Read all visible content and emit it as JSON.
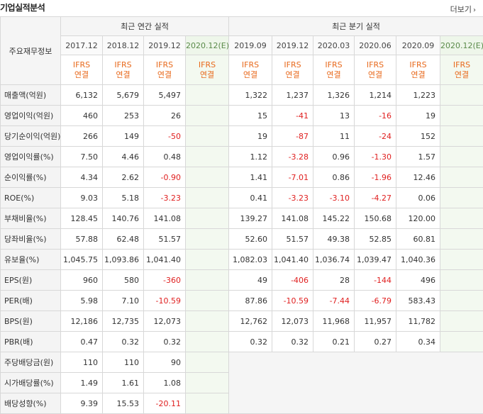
{
  "header": {
    "title": "기업실적분석",
    "more_label": "더보기"
  },
  "table": {
    "row_header_label": "주요재무정보",
    "group_annual": "최근 연간 실적",
    "group_quarter": "최근 분기 실적",
    "annual_periods": [
      "2017.12",
      "2018.12",
      "2019.12",
      "2020.12(E)"
    ],
    "quarter_periods": [
      "2019.09",
      "2019.12",
      "2020.03",
      "2020.06",
      "2020.09",
      "2020.12(E)"
    ],
    "ifrs_top": "IFRS",
    "ifrs_bottom": "연결",
    "rows": [
      {
        "label": "매출액(억원)",
        "annual": [
          "6,132",
          "5,679",
          "5,497",
          ""
        ],
        "quarter": [
          "1,322",
          "1,237",
          "1,326",
          "1,214",
          "1,223",
          ""
        ]
      },
      {
        "label": "영업이익(억원)",
        "annual": [
          "460",
          "253",
          "26",
          ""
        ],
        "quarter": [
          "15",
          "-41",
          "13",
          "-16",
          "19",
          ""
        ]
      },
      {
        "label": "당기순이익(억원)",
        "annual": [
          "266",
          "149",
          "-50",
          ""
        ],
        "quarter": [
          "19",
          "-87",
          "11",
          "-24",
          "152",
          ""
        ]
      },
      {
        "label": "영업이익률(%)",
        "annual": [
          "7.50",
          "4.46",
          "0.48",
          ""
        ],
        "quarter": [
          "1.12",
          "-3.28",
          "0.96",
          "-1.30",
          "1.57",
          ""
        ]
      },
      {
        "label": "순이익률(%)",
        "annual": [
          "4.34",
          "2.62",
          "-0.90",
          ""
        ],
        "quarter": [
          "1.41",
          "-7.01",
          "0.86",
          "-1.96",
          "12.46",
          ""
        ]
      },
      {
        "label": "ROE(%)",
        "annual": [
          "9.03",
          "5.18",
          "-3.23",
          ""
        ],
        "quarter": [
          "0.41",
          "-3.23",
          "-3.10",
          "-4.27",
          "0.06",
          ""
        ]
      },
      {
        "label": "부채비율(%)",
        "annual": [
          "128.45",
          "140.76",
          "141.08",
          ""
        ],
        "quarter": [
          "139.27",
          "141.08",
          "145.22",
          "150.68",
          "120.00",
          ""
        ]
      },
      {
        "label": "당좌비율(%)",
        "annual": [
          "57.88",
          "62.48",
          "51.57",
          ""
        ],
        "quarter": [
          "52.60",
          "51.57",
          "49.38",
          "52.85",
          "60.81",
          ""
        ]
      },
      {
        "label": "유보율(%)",
        "annual": [
          "1,045.75",
          "1,093.86",
          "1,041.40",
          ""
        ],
        "quarter": [
          "1,082.03",
          "1,041.40",
          "1,036.74",
          "1,039.47",
          "1,040.36",
          ""
        ]
      },
      {
        "label": "EPS(원)",
        "annual": [
          "960",
          "580",
          "-360",
          ""
        ],
        "quarter": [
          "49",
          "-406",
          "28",
          "-144",
          "496",
          ""
        ]
      },
      {
        "label": "PER(배)",
        "annual": [
          "5.98",
          "7.10",
          "-10.59",
          ""
        ],
        "quarter": [
          "87.86",
          "-10.59",
          "-7.44",
          "-6.79",
          "583.43",
          ""
        ]
      },
      {
        "label": "BPS(원)",
        "annual": [
          "12,186",
          "12,735",
          "12,073",
          ""
        ],
        "quarter": [
          "12,762",
          "12,073",
          "11,968",
          "11,957",
          "11,782",
          ""
        ]
      },
      {
        "label": "PBR(배)",
        "annual": [
          "0.47",
          "0.32",
          "0.32",
          ""
        ],
        "quarter": [
          "0.32",
          "0.32",
          "0.21",
          "0.27",
          "0.34",
          ""
        ]
      },
      {
        "label": "주당배당금(원)",
        "annual": [
          "110",
          "110",
          "90",
          ""
        ],
        "quarter": null
      },
      {
        "label": "시가배당률(%)",
        "annual": [
          "1.49",
          "1.61",
          "1.08",
          ""
        ],
        "quarter": null
      },
      {
        "label": "배당성향(%)",
        "annual": [
          "9.39",
          "15.53",
          "-20.11",
          ""
        ],
        "quarter": null
      }
    ],
    "section_starts": [
      3,
      6,
      9,
      13
    ],
    "colors": {
      "negative": "#e02020",
      "ifrs": "#e8691c",
      "estimate_bg": "#f3f9f0"
    }
  }
}
